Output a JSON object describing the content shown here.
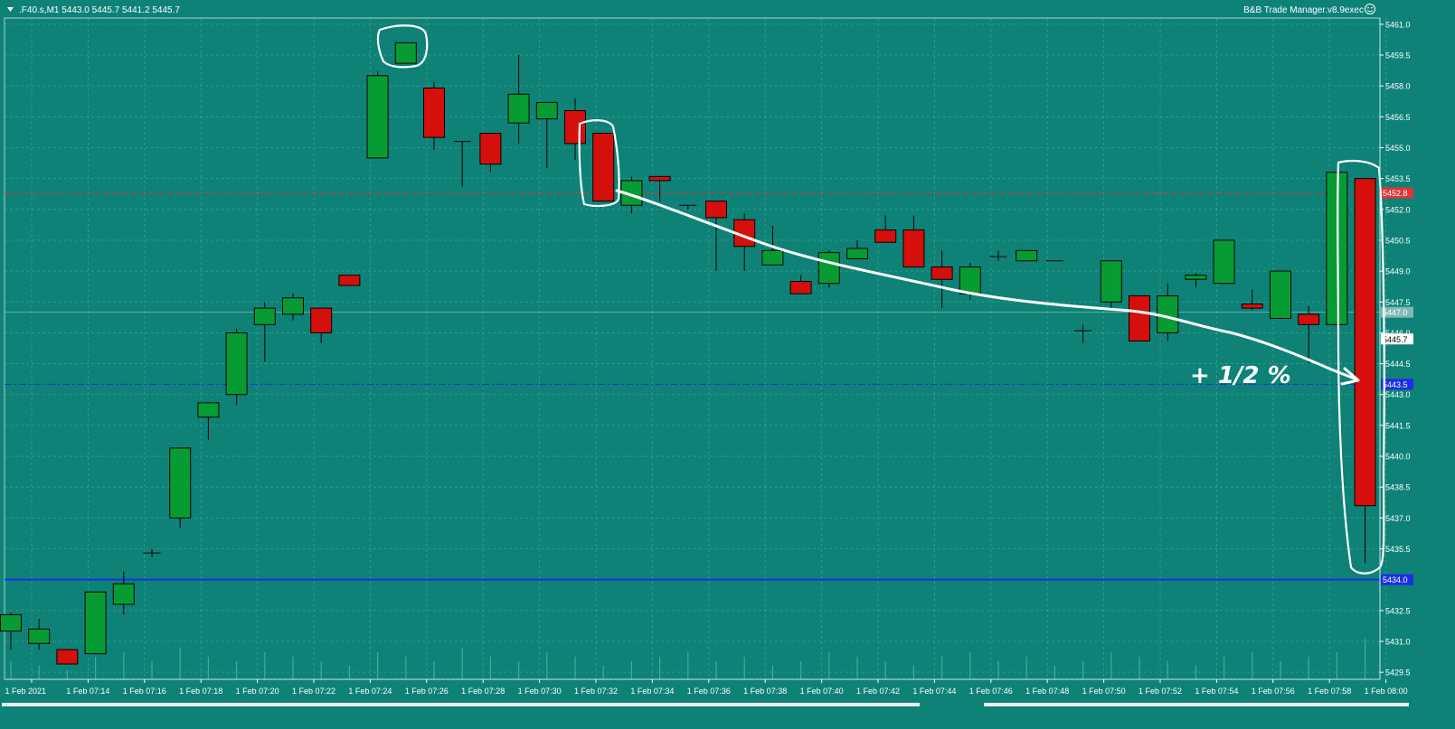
{
  "header": {
    "symbol_info": ".F40.s,M1  5443.0 5445.7 5441.2 5445.7",
    "expert_label": "B&B Trade Manager.v8.9exec"
  },
  "colors": {
    "background": "#0e8277",
    "grid": "#5fb3aa",
    "bull": "#079b34",
    "bear": "#d40f0c",
    "axis_text": "#ffffff",
    "blue_line": "#1b2ee8",
    "red_line": "#e0333a",
    "annotation": "#ffffff"
  },
  "chart_data": {
    "type": "candlestick",
    "timeframe": "M1",
    "ylim": [
      5428.5,
      5462.0
    ],
    "y_ticks": [
      "5461.0",
      "5459.5",
      "5458.0",
      "5456.5",
      "5455.0",
      "5453.5",
      "5452.0",
      "5450.5",
      "5449.0",
      "5447.5",
      "5446.0",
      "5444.5",
      "5443.0",
      "5441.5",
      "5440.0",
      "5438.5",
      "5437.0",
      "5435.5",
      "5432.5",
      "5431.0",
      "5429.5"
    ],
    "x_tick_labels": [
      "1 Feb 2021",
      "1 Feb 07:14",
      "1 Feb 07:16",
      "1 Feb 07:18",
      "1 Feb 07:20",
      "1 Feb 07:22",
      "1 Feb 07:24",
      "1 Feb 07:26",
      "1 Feb 07:28",
      "1 Feb 07:30",
      "1 Feb 07:32",
      "1 Feb 07:34",
      "1 Feb 07:36",
      "1 Feb 07:38",
      "1 Feb 07:40",
      "1 Feb 07:42",
      "1 Feb 07:44",
      "1 Feb 07:46",
      "1 Feb 07:48",
      "1 Feb 07:50",
      "1 Feb 07:52",
      "1 Feb 07:54",
      "1 Feb 07:56",
      "1 Feb 07:58",
      "1 Feb 08:00"
    ],
    "candles": [
      {
        "t": "07:11",
        "o": 5431.5,
        "h": 5432.4,
        "l": 5430.6,
        "c": 5432.3
      },
      {
        "t": "07:12",
        "o": 5430.9,
        "h": 5432.1,
        "l": 5430.6,
        "c": 5431.6
      },
      {
        "t": "07:13",
        "o": 5430.6,
        "h": 5430.6,
        "l": 5429.9,
        "c": 5429.9
      },
      {
        "t": "07:14",
        "o": 5430.4,
        "h": 5433.4,
        "l": 5430.4,
        "c": 5433.4
      },
      {
        "t": "07:15",
        "o": 5432.8,
        "h": 5434.4,
        "l": 5432.3,
        "c": 5433.8
      },
      {
        "t": "07:16",
        "o": 5435.3,
        "h": 5435.5,
        "l": 5435.1,
        "c": 5435.3
      },
      {
        "t": "07:17",
        "o": 5437.0,
        "h": 5440.4,
        "l": 5436.5,
        "c": 5440.4
      },
      {
        "t": "07:18",
        "o": 5441.9,
        "h": 5442.6,
        "l": 5440.8,
        "c": 5442.6
      },
      {
        "t": "07:19",
        "o": 5443.0,
        "h": 5446.2,
        "l": 5442.5,
        "c": 5446.0
      },
      {
        "t": "07:20",
        "o": 5446.4,
        "h": 5447.5,
        "l": 5444.6,
        "c": 5447.2
      },
      {
        "t": "07:21",
        "o": 5446.9,
        "h": 5447.9,
        "l": 5446.6,
        "c": 5447.7
      },
      {
        "t": "07:22",
        "o": 5447.2,
        "h": 5447.2,
        "l": 5445.5,
        "c": 5446.0
      },
      {
        "t": "07:23",
        "o": 5448.8,
        "h": 5448.8,
        "l": 5448.3,
        "c": 5448.3
      },
      {
        "t": "07:24",
        "o": 5454.5,
        "h": 5458.7,
        "l": 5454.5,
        "c": 5458.5
      },
      {
        "t": "07:25",
        "o": 5459.1,
        "h": 5460.1,
        "l": 5459.1,
        "c": 5460.1
      },
      {
        "t": "07:26",
        "o": 5457.9,
        "h": 5458.2,
        "l": 5454.9,
        "c": 5455.5
      },
      {
        "t": "07:27",
        "o": 5455.3,
        "h": 5455.3,
        "l": 5453.1,
        "c": 5455.3
      },
      {
        "t": "07:28",
        "o": 5455.7,
        "h": 5455.7,
        "l": 5453.8,
        "c": 5454.2
      },
      {
        "t": "07:29",
        "o": 5456.2,
        "h": 5459.5,
        "l": 5455.2,
        "c": 5457.6
      },
      {
        "t": "07:30",
        "o": 5456.4,
        "h": 5457.2,
        "l": 5454.0,
        "c": 5457.2
      },
      {
        "t": "07:31",
        "o": 5456.8,
        "h": 5457.4,
        "l": 5454.4,
        "c": 5455.2
      },
      {
        "t": "07:32",
        "o": 5455.7,
        "h": 5455.7,
        "l": 5452.4,
        "c": 5452.4
      },
      {
        "t": "07:33",
        "o": 5452.2,
        "h": 5453.6,
        "l": 5451.8,
        "c": 5453.4
      },
      {
        "t": "07:34",
        "o": 5453.6,
        "h": 5453.6,
        "l": 5452.4,
        "c": 5453.4
      },
      {
        "t": "07:35",
        "o": 5452.2,
        "h": 5452.2,
        "l": 5452.0,
        "c": 5452.2
      },
      {
        "t": "07:36",
        "o": 5452.4,
        "h": 5452.4,
        "l": 5449.0,
        "c": 5451.6
      },
      {
        "t": "07:37",
        "o": 5451.5,
        "h": 5451.8,
        "l": 5449.0,
        "c": 5450.2
      },
      {
        "t": "07:38",
        "o": 5449.3,
        "h": 5451.2,
        "l": 5449.3,
        "c": 5450.0
      },
      {
        "t": "07:39",
        "o": 5448.5,
        "h": 5448.8,
        "l": 5447.9,
        "c": 5447.9
      },
      {
        "t": "07:40",
        "o": 5448.4,
        "h": 5450.0,
        "l": 5448.2,
        "c": 5449.9
      },
      {
        "t": "07:41",
        "o": 5449.6,
        "h": 5450.5,
        "l": 5449.6,
        "c": 5450.1
      },
      {
        "t": "07:42",
        "o": 5451.0,
        "h": 5451.7,
        "l": 5450.4,
        "c": 5450.4
      },
      {
        "t": "07:43",
        "o": 5451.0,
        "h": 5451.7,
        "l": 5449.2,
        "c": 5449.2
      },
      {
        "t": "07:44",
        "o": 5449.2,
        "h": 5450.0,
        "l": 5447.2,
        "c": 5448.6
      },
      {
        "t": "07:45",
        "o": 5447.9,
        "h": 5449.4,
        "l": 5447.6,
        "c": 5449.2
      },
      {
        "t": "07:46",
        "o": 5449.7,
        "h": 5450.0,
        "l": 5449.5,
        "c": 5449.7
      },
      {
        "t": "07:47",
        "o": 5449.5,
        "h": 5450.0,
        "l": 5449.5,
        "c": 5450.0
      },
      {
        "t": "07:48",
        "o": 5449.5,
        "h": 5449.5,
        "l": 5449.5,
        "c": 5449.5
      },
      {
        "t": "07:49",
        "o": 5446.1,
        "h": 5446.4,
        "l": 5445.5,
        "c": 5446.1
      },
      {
        "t": "07:50",
        "o": 5447.5,
        "h": 5449.5,
        "l": 5447.1,
        "c": 5449.5
      },
      {
        "t": "07:51",
        "o": 5447.8,
        "h": 5447.8,
        "l": 5445.6,
        "c": 5445.6
      },
      {
        "t": "07:52",
        "o": 5446.0,
        "h": 5448.4,
        "l": 5445.6,
        "c": 5447.8
      },
      {
        "t": "07:53",
        "o": 5448.6,
        "h": 5448.9,
        "l": 5448.2,
        "c": 5448.8
      },
      {
        "t": "07:54",
        "o": 5448.4,
        "h": 5450.5,
        "l": 5448.4,
        "c": 5450.5
      },
      {
        "t": "07:55",
        "o": 5447.4,
        "h": 5448.1,
        "l": 5447.1,
        "c": 5447.2
      },
      {
        "t": "07:56",
        "o": 5446.7,
        "h": 5449.0,
        "l": 5446.7,
        "c": 5449.0
      },
      {
        "t": "07:57",
        "o": 5446.9,
        "h": 5447.3,
        "l": 5444.5,
        "c": 5446.4
      },
      {
        "t": "07:58",
        "o": 5446.4,
        "h": 5453.8,
        "l": 5446.4,
        "c": 5453.8
      },
      {
        "t": "07:59",
        "o": 5453.5,
        "h": 5453.5,
        "l": 5434.8,
        "c": 5437.6
      }
    ],
    "levels": [
      {
        "name": "red-level",
        "value": 5452.8,
        "label": "5452.8",
        "style": "dashed"
      },
      {
        "name": "gray-level",
        "value": 5447.0,
        "label": "5447.0",
        "style": "solid"
      },
      {
        "name": "price-level",
        "value": 5445.7,
        "label": "5445.7",
        "style": "none"
      },
      {
        "name": "blue-dash-level",
        "value": 5443.5,
        "label": "5443.5",
        "style": "dashdot"
      },
      {
        "name": "blue-solid-level",
        "value": 5434.0,
        "label": "5434.0",
        "style": "solid"
      }
    ],
    "volume_bars": [
      4,
      3,
      2,
      5,
      6,
      4,
      7,
      5,
      4,
      6,
      5,
      4,
      3,
      6,
      5,
      4,
      7,
      5,
      4,
      6,
      5,
      3,
      4,
      5,
      6,
      4,
      5,
      3,
      4,
      6,
      5,
      4,
      3,
      5,
      6,
      4,
      5,
      3,
      4,
      6,
      5,
      4,
      3,
      5,
      6,
      4,
      5,
      6,
      9
    ],
    "annotation_text": "+ 1/2 %"
  }
}
